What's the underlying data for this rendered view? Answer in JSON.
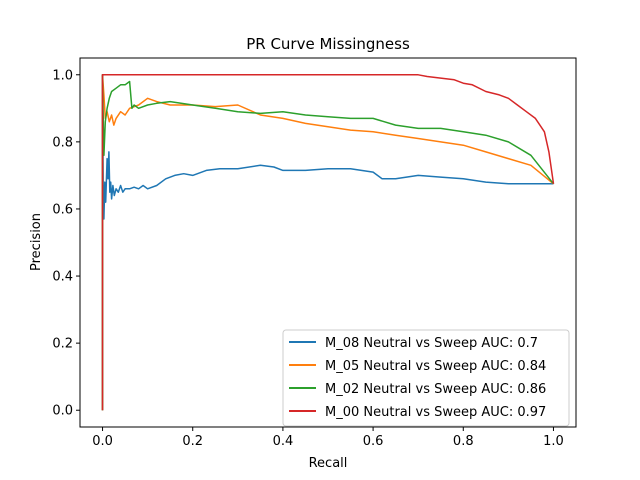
{
  "chart_data": {
    "type": "line",
    "title": "PR Curve Missingness",
    "xlabel": "Recall",
    "ylabel": "Precision",
    "xlim": [
      -0.05,
      1.05
    ],
    "ylim": [
      -0.05,
      1.05
    ],
    "xticks": [
      0.0,
      0.2,
      0.4,
      0.6,
      0.8,
      1.0
    ],
    "xtick_labels": [
      "0.0",
      "0.2",
      "0.4",
      "0.6",
      "0.8",
      "1.0"
    ],
    "yticks": [
      0.0,
      0.2,
      0.4,
      0.6,
      0.8,
      1.0
    ],
    "ytick_labels": [
      "0.0",
      "0.2",
      "0.4",
      "0.6",
      "0.8",
      "1.0"
    ],
    "grid": false,
    "legend_position": "bottom-right",
    "series": [
      {
        "name": "M_08 Neutral vs Sweep AUC: 0.7",
        "color": "#1f77b4",
        "x": [
          0.0,
          0.0,
          0.002,
          0.003,
          0.005,
          0.007,
          0.01,
          0.012,
          0.014,
          0.016,
          0.018,
          0.02,
          0.023,
          0.026,
          0.03,
          0.035,
          0.04,
          0.045,
          0.05,
          0.06,
          0.07,
          0.08,
          0.09,
          0.1,
          0.12,
          0.14,
          0.16,
          0.18,
          0.2,
          0.23,
          0.26,
          0.3,
          0.35,
          0.38,
          0.4,
          0.45,
          0.5,
          0.55,
          0.6,
          0.62,
          0.65,
          0.7,
          0.75,
          0.8,
          0.85,
          0.9,
          0.95,
          1.0
        ],
        "y": [
          0.0,
          1.0,
          0.59,
          0.57,
          0.68,
          0.62,
          0.75,
          0.69,
          0.77,
          0.65,
          0.68,
          0.63,
          0.67,
          0.64,
          0.66,
          0.65,
          0.67,
          0.65,
          0.66,
          0.66,
          0.665,
          0.66,
          0.67,
          0.66,
          0.67,
          0.69,
          0.7,
          0.705,
          0.7,
          0.715,
          0.72,
          0.72,
          0.73,
          0.725,
          0.715,
          0.715,
          0.72,
          0.72,
          0.71,
          0.69,
          0.69,
          0.7,
          0.695,
          0.69,
          0.68,
          0.675,
          0.675,
          0.675
        ]
      },
      {
        "name": "M_05 Neutral vs Sweep AUC: 0.84",
        "color": "#ff7f0e",
        "x": [
          0.0,
          0.0,
          0.003,
          0.006,
          0.01,
          0.015,
          0.02,
          0.025,
          0.03,
          0.04,
          0.05,
          0.06,
          0.08,
          0.1,
          0.12,
          0.15,
          0.2,
          0.25,
          0.3,
          0.35,
          0.4,
          0.45,
          0.5,
          0.55,
          0.6,
          0.65,
          0.7,
          0.75,
          0.8,
          0.85,
          0.9,
          0.95,
          1.0
        ],
        "y": [
          0.0,
          1.0,
          0.94,
          0.87,
          0.89,
          0.86,
          0.88,
          0.85,
          0.87,
          0.89,
          0.88,
          0.9,
          0.91,
          0.93,
          0.92,
          0.91,
          0.91,
          0.905,
          0.91,
          0.88,
          0.87,
          0.855,
          0.845,
          0.835,
          0.83,
          0.82,
          0.81,
          0.8,
          0.79,
          0.77,
          0.75,
          0.73,
          0.675
        ]
      },
      {
        "name": "M_02 Neutral vs Sweep AUC: 0.86",
        "color": "#2ca02c",
        "x": [
          0.0,
          0.0,
          0.003,
          0.006,
          0.01,
          0.015,
          0.02,
          0.03,
          0.04,
          0.05,
          0.06,
          0.065,
          0.07,
          0.08,
          0.1,
          0.12,
          0.15,
          0.2,
          0.25,
          0.3,
          0.35,
          0.4,
          0.45,
          0.5,
          0.55,
          0.6,
          0.65,
          0.7,
          0.75,
          0.8,
          0.85,
          0.9,
          0.95,
          1.0
        ],
        "y": [
          0.0,
          1.0,
          0.76,
          0.86,
          0.9,
          0.93,
          0.95,
          0.96,
          0.97,
          0.97,
          0.98,
          0.9,
          0.91,
          0.9,
          0.91,
          0.915,
          0.92,
          0.91,
          0.9,
          0.89,
          0.885,
          0.89,
          0.88,
          0.875,
          0.87,
          0.87,
          0.85,
          0.84,
          0.84,
          0.83,
          0.82,
          0.8,
          0.76,
          0.675
        ]
      },
      {
        "name": "M_00 Neutral vs Sweep AUC: 0.97",
        "color": "#d62728",
        "x": [
          0.0,
          0.0,
          0.1,
          0.2,
          0.3,
          0.4,
          0.5,
          0.6,
          0.7,
          0.72,
          0.75,
          0.78,
          0.8,
          0.82,
          0.85,
          0.88,
          0.9,
          0.92,
          0.94,
          0.96,
          0.98,
          0.99,
          1.0
        ],
        "y": [
          0.0,
          1.0,
          1.0,
          1.0,
          1.0,
          1.0,
          1.0,
          1.0,
          1.0,
          0.995,
          0.99,
          0.985,
          0.975,
          0.97,
          0.95,
          0.94,
          0.93,
          0.91,
          0.89,
          0.87,
          0.83,
          0.77,
          0.675
        ]
      }
    ]
  }
}
